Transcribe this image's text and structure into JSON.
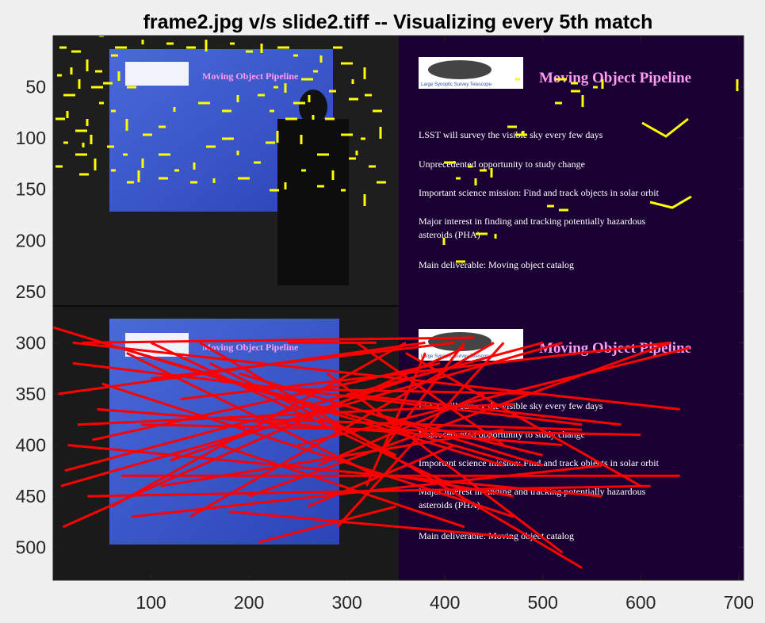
{
  "chart_data": {
    "type": "image",
    "title": "frame2.jpg v/s slide2.tiff -- Visualizing every 5th match",
    "xlim": [
      0,
      705
    ],
    "ylim": [
      532,
      0
    ],
    "x_ticks": [
      100,
      200,
      300,
      400,
      500,
      600,
      700
    ],
    "y_ticks": [
      50,
      100,
      150,
      200,
      250,
      300,
      350,
      400,
      450,
      500
    ],
    "feature_color": "#ffff00",
    "match_color": "#ff0000",
    "slide_bg": "#1a0033",
    "panels": {
      "frame": "frame2.jpg",
      "slide": "slide2.tiff"
    },
    "slide_text": {
      "heading": "Moving Object Pipeline",
      "logo_caption": "Large Synoptic Survey Telescope",
      "bullets": [
        "LSST will survey the visible sky every few days",
        "Unprecedented opportunity to study change",
        "Important science mission: Find and track objects in solar orbit",
        "Major interest in finding and tracking potentially hazardous",
        "asteroids (PHA)",
        "Main deliverable: Moving object catalog"
      ],
      "frame_heading": "Moving Object Pipeline"
    },
    "matches": [
      [
        0,
        285,
        460,
        420
      ],
      [
        5,
        350,
        380,
        300
      ],
      [
        10,
        480,
        420,
        305
      ],
      [
        12,
        425,
        500,
        300
      ],
      [
        20,
        320,
        540,
        380
      ],
      [
        30,
        300,
        430,
        295
      ],
      [
        35,
        450,
        610,
        440
      ],
      [
        40,
        395,
        395,
        320
      ],
      [
        45,
        365,
        520,
        400
      ],
      [
        50,
        340,
        470,
        470
      ],
      [
        60,
        460,
        360,
        300
      ],
      [
        70,
        430,
        640,
        430
      ],
      [
        75,
        310,
        330,
        430
      ],
      [
        80,
        470,
        560,
        420
      ],
      [
        90,
        380,
        600,
        390
      ],
      [
        100,
        335,
        410,
        300
      ],
      [
        110,
        440,
        460,
        385
      ],
      [
        120,
        415,
        380,
        330
      ],
      [
        130,
        355,
        630,
        300
      ],
      [
        140,
        470,
        450,
        300
      ],
      [
        150,
        300,
        540,
        520
      ],
      [
        160,
        320,
        350,
        410
      ],
      [
        170,
        400,
        420,
        480
      ],
      [
        180,
        465,
        470,
        490
      ],
      [
        190,
        330,
        500,
        420
      ],
      [
        200,
        450,
        630,
        300
      ],
      [
        210,
        495,
        350,
        460
      ],
      [
        220,
        375,
        540,
        385
      ],
      [
        230,
        345,
        500,
        350
      ],
      [
        240,
        300,
        330,
        300
      ],
      [
        250,
        400,
        650,
        305
      ],
      [
        260,
        460,
        410,
        400
      ],
      [
        270,
        420,
        440,
        350
      ],
      [
        280,
        330,
        520,
        505
      ],
      [
        290,
        480,
        460,
        300
      ],
      [
        300,
        350,
        580,
        380
      ],
      [
        310,
        300,
        460,
        400
      ],
      [
        320,
        440,
        380,
        310
      ],
      [
        330,
        370,
        500,
        410
      ],
      [
        340,
        400,
        420,
        300
      ],
      [
        350,
        430,
        470,
        450
      ],
      [
        360,
        310,
        600,
        440
      ],
      [
        20,
        300,
        640,
        365
      ],
      [
        8,
        440,
        520,
        300
      ],
      [
        15,
        400,
        560,
        450
      ],
      [
        25,
        380,
        470,
        360
      ],
      [
        50,
        300,
        480,
        420
      ],
      [
        100,
        300,
        420,
        445
      ]
    ],
    "frame_features": [
      [
        65,
        55
      ],
      [
        75,
        60
      ],
      [
        90,
        65
      ],
      [
        110,
        75
      ],
      [
        125,
        45
      ],
      [
        140,
        70
      ],
      [
        150,
        90
      ],
      [
        115,
        110
      ],
      [
        125,
        130
      ],
      [
        85,
        140
      ],
      [
        70,
        150
      ],
      [
        95,
        165
      ],
      [
        105,
        180
      ],
      [
        70,
        210
      ],
      [
        100,
        220
      ],
      [
        120,
        200
      ],
      [
        140,
        215
      ],
      [
        160,
        230
      ],
      [
        180,
        200
      ],
      [
        200,
        195
      ],
      [
        220,
        215
      ],
      [
        245,
        205
      ],
      [
        260,
        185
      ],
      [
        280,
        175
      ],
      [
        300,
        190
      ],
      [
        320,
        205
      ],
      [
        335,
        180
      ],
      [
        350,
        165
      ],
      [
        340,
        140
      ],
      [
        325,
        120
      ],
      [
        360,
        105
      ],
      [
        380,
        100
      ],
      [
        395,
        90
      ],
      [
        405,
        70
      ],
      [
        420,
        60
      ],
      [
        430,
        80
      ],
      [
        445,
        100
      ],
      [
        460,
        120
      ],
      [
        470,
        140
      ],
      [
        480,
        160
      ],
      [
        455,
        175
      ],
      [
        440,
        200
      ],
      [
        420,
        215
      ],
      [
        400,
        195
      ],
      [
        380,
        215
      ],
      [
        360,
        230
      ],
      [
        340,
        240
      ],
      [
        300,
        225
      ],
      [
        270,
        225
      ],
      [
        240,
        230
      ],
      [
        200,
        225
      ],
      [
        175,
        215
      ],
      [
        155,
        195
      ],
      [
        135,
        185
      ],
      [
        115,
        170
      ],
      [
        95,
        195
      ],
      [
        80,
        180
      ],
      [
        110,
        150
      ],
      [
        130,
        105
      ],
      [
        145,
        60
      ],
      [
        180,
        50
      ],
      [
        210,
        55
      ],
      [
        235,
        60
      ],
      [
        260,
        50
      ],
      [
        290,
        55
      ],
      [
        310,
        65
      ],
      [
        330,
        55
      ],
      [
        350,
        60
      ],
      [
        370,
        70
      ],
      [
        390,
        120
      ],
      [
        410,
        150
      ],
      [
        430,
        170
      ],
      [
        450,
        190
      ],
      [
        465,
        210
      ],
      [
        475,
        230
      ],
      [
        460,
        245
      ],
      [
        430,
        240
      ],
      [
        400,
        235
      ],
      [
        380,
        170
      ],
      [
        360,
        150
      ],
      [
        345,
        110
      ],
      [
        300,
        120
      ],
      [
        280,
        140
      ],
      [
        250,
        130
      ],
      [
        220,
        135
      ],
      [
        200,
        160
      ],
      [
        180,
        170
      ],
      [
        160,
        150
      ],
      [
        140,
        140
      ],
      [
        120,
        90
      ],
      [
        100,
        100
      ],
      [
        80,
        120
      ],
      [
        72,
        95
      ],
      [
        90,
        85
      ],
      [
        160,
        110
      ],
      [
        370,
        130
      ],
      [
        395,
        145
      ],
      [
        415,
        115
      ],
      [
        440,
        125
      ],
      [
        460,
        85
      ]
    ],
    "slide_features": [
      [
        590,
        210
      ],
      [
        605,
        215
      ],
      [
        620,
        212
      ],
      [
        560,
        205
      ],
      [
        575,
        225
      ],
      [
        600,
        225
      ],
      [
        640,
        160
      ],
      [
        650,
        170
      ],
      [
        660,
        165
      ],
      [
        700,
        130
      ],
      [
        720,
        115
      ],
      [
        735,
        120
      ],
      [
        748,
        110
      ],
      [
        720,
        105
      ],
      [
        760,
        100
      ],
      [
        700,
        100
      ],
      [
        650,
        100
      ],
      [
        560,
        300
      ],
      [
        575,
        330
      ],
      [
        600,
        295
      ],
      [
        625,
        295
      ],
      [
        690,
        260
      ],
      [
        705,
        265
      ],
      [
        930,
        100
      ]
    ]
  }
}
